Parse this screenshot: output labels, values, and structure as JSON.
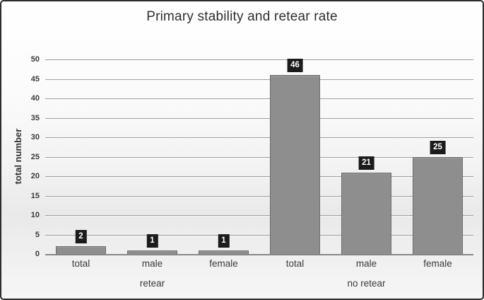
{
  "chart_data": {
    "type": "bar",
    "title": "Primary stability and retear rate",
    "xlabel": "",
    "ylabel": "total number",
    "ylim": [
      0,
      50
    ],
    "ytick_step": 5,
    "grid": true,
    "legend": false,
    "categories": [
      "total",
      "male",
      "female",
      "total",
      "male",
      "female"
    ],
    "values": [
      2,
      1,
      1,
      46,
      21,
      25
    ],
    "data_labels": [
      "2",
      "1",
      "1",
      "46",
      "21",
      "25"
    ],
    "group_labels": [
      "retear",
      "no retear"
    ],
    "groups": [
      {
        "label": "retear",
        "categories": [
          "total",
          "male",
          "female"
        ],
        "values": [
          2,
          1,
          1
        ]
      },
      {
        "label": "no retear",
        "categories": [
          "total",
          "male",
          "female"
        ],
        "values": [
          46,
          21,
          25
        ]
      }
    ],
    "colors": {
      "bar_fill": "#8e8e8e",
      "bar_border": "#6c6c6c",
      "data_label_bg": "#1b1b1b",
      "data_label_text": "#ffffff",
      "gridline": "#9e9e9e",
      "axis_text": "#3a3a3a",
      "frame_border": "#2d2d2d"
    }
  }
}
